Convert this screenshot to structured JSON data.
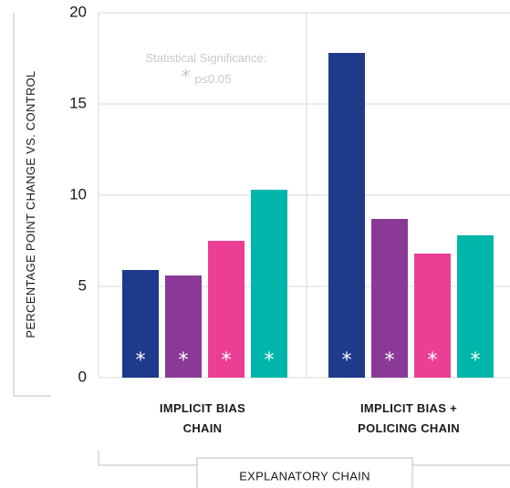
{
  "chart_data": {
    "type": "bar",
    "categories": [
      [
        "IMPLICIT BIAS",
        "CHAIN"
      ],
      [
        "IMPLICIT BIAS +",
        "POLICING CHAIN"
      ]
    ],
    "series": [
      {
        "color": "#1e3a8a",
        "values": [
          5.9,
          17.8
        ]
      },
      {
        "color": "#8a3a96",
        "values": [
          5.6,
          8.7
        ]
      },
      {
        "color": "#ea3f95",
        "values": [
          7.5,
          6.8
        ]
      },
      {
        "color": "#00b6aa",
        "values": [
          10.3,
          7.8
        ]
      }
    ],
    "significance_marker": "*",
    "significant": [
      [
        true,
        true
      ],
      [
        true,
        true
      ],
      [
        true,
        true
      ],
      [
        true,
        true
      ]
    ],
    "ylim": [
      0,
      20
    ],
    "yticks": [
      0,
      5,
      10,
      15,
      20
    ],
    "ylabel": "PERCENTAGE POINT CHANGE VS. CONTROL",
    "xlabel": "EXPLANATORY CHAIN",
    "legend": {
      "title": "Statistical Significance:",
      "entry": "p≤0.05"
    }
  }
}
